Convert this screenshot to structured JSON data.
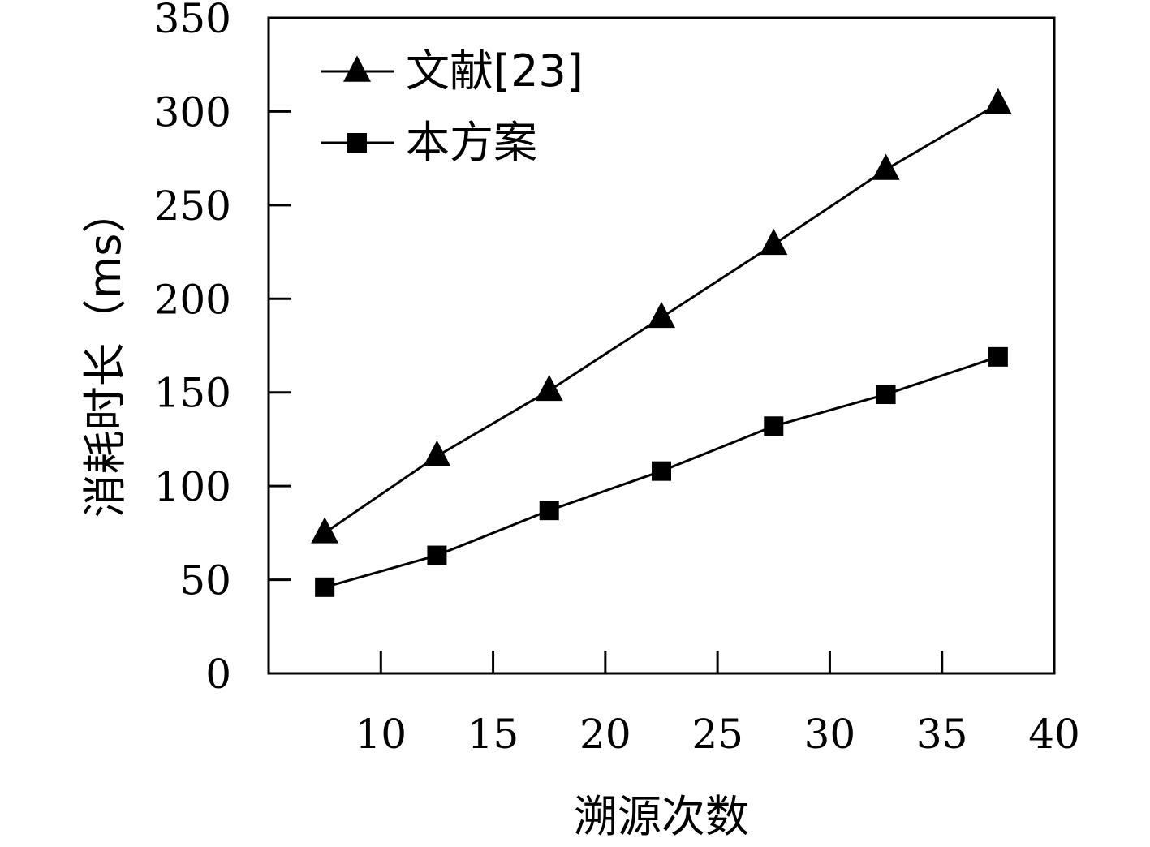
{
  "chart_data": {
    "type": "line",
    "xlabel": "溯源次数",
    "ylabel": "消耗时长（ms）",
    "xlim": [
      5,
      40
    ],
    "ylim": [
      0,
      350
    ],
    "x_ticks": [
      10,
      15,
      20,
      25,
      30,
      35,
      40
    ],
    "y_ticks": [
      0,
      50,
      100,
      150,
      200,
      250,
      300,
      350
    ],
    "grid": false,
    "legend_position": "top-left",
    "series": [
      {
        "name": "文献[23]",
        "marker": "triangle",
        "color": "#000000",
        "x": [
          7.5,
          12.5,
          17.5,
          22.5,
          27.5,
          32.5,
          37.5
        ],
        "values": [
          75,
          116,
          151,
          190,
          229,
          269,
          304
        ]
      },
      {
        "name": "本方案",
        "marker": "square",
        "color": "#000000",
        "x": [
          7.5,
          12.5,
          17.5,
          22.5,
          27.5,
          32.5,
          37.5
        ],
        "values": [
          46,
          63,
          87,
          108,
          132,
          149,
          169
        ]
      }
    ]
  }
}
